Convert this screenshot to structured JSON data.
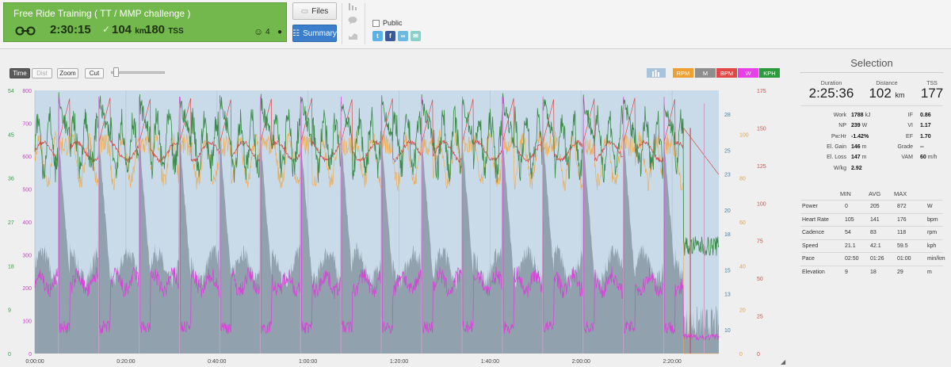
{
  "workout": {
    "title": "Free Ride Training ( TT / MMP challenge )",
    "duration": "2:30:15",
    "distance": "104",
    "distance_unit": "km",
    "tss": "180",
    "tss_unit": "TSS",
    "likes": "4",
    "card_color": "#72b84c"
  },
  "toolbar": {
    "files_label": "Files",
    "summary_label": "Summary",
    "public_label": "Public",
    "icons": [
      "bar-chart-icon",
      "comment-icon",
      "area-chart-icon"
    ],
    "share": [
      "twitter-icon",
      "facebook-icon",
      "link-icon",
      "email-icon"
    ]
  },
  "chart_tools": {
    "time_label": "Time",
    "dist_label": "Dist",
    "zoom_label": "Zoom",
    "cut_label": "Cut"
  },
  "series_buttons": [
    {
      "label": "RPM",
      "color": "#f0a030"
    },
    {
      "label": "M",
      "color": "#8e8e8e"
    },
    {
      "label": "BPM",
      "color": "#e04848"
    },
    {
      "label": "W",
      "color": "#e640e6"
    },
    {
      "label": "KPH",
      "color": "#2e9a3e"
    }
  ],
  "chart_data": {
    "type": "line",
    "x_ticks": [
      "0:00:00",
      "0:20:00",
      "0:40:00",
      "1:00:00",
      "1:20:00",
      "1:40:00",
      "2:00:00",
      "2:20:00"
    ],
    "x_range_seconds": [
      0,
      9015
    ],
    "axes": {
      "power_w": {
        "ticks": [
          "0",
          "100",
          "200",
          "300",
          "400",
          "500",
          "600",
          "700",
          "800"
        ],
        "range": [
          0,
          800
        ],
        "color": "#d23cd2"
      },
      "speed_kph": {
        "ticks": [
          "0",
          "9",
          "18",
          "27",
          "36",
          "45",
          "54"
        ],
        "range": [
          0,
          54
        ],
        "color": "#3a9a4a"
      },
      "elevation_m": {
        "ticks": [
          "10",
          "13",
          "15",
          "18",
          "20",
          "23",
          "25",
          "28"
        ],
        "range": [
          8,
          30
        ],
        "color": "#4a7a9a"
      },
      "cadence_rpm": {
        "ticks": [
          "0",
          "20",
          "40",
          "60",
          "80",
          "100"
        ],
        "range": [
          0,
          120
        ],
        "color": "#f0a030"
      },
      "heart_rate_bpm": {
        "ticks": [
          "0",
          "25",
          "50",
          "75",
          "100",
          "125",
          "150",
          "175"
        ],
        "range": [
          0,
          175
        ],
        "color": "#e04848"
      }
    },
    "intervals": {
      "count": 17,
      "first_peak_s": 310,
      "spacing_s": 532,
      "work_s": 150,
      "last_drop_s": 8550
    },
    "series": [
      {
        "name": "W",
        "avg": 205,
        "max": 872,
        "color": "#d940d9"
      },
      {
        "name": "KPH",
        "avg": 42.1,
        "max": 59.5,
        "color": "#3a8a48"
      },
      {
        "name": "RPM",
        "avg": 83,
        "max": 118,
        "color": "#f0a848"
      },
      {
        "name": "BPM",
        "avg": 141,
        "max": 176,
        "color": "#d84848"
      },
      {
        "name": "M",
        "avg": 18,
        "max": 29,
        "color": "#8e9ea8"
      }
    ]
  },
  "selection": {
    "title": "Selection",
    "duration_label": "Duration",
    "duration": "2:25:36",
    "distance_label": "Distance",
    "distance": "102",
    "distance_unit": "km",
    "tss_label": "TSS",
    "tss": "177",
    "left_stats": [
      {
        "label": "Work",
        "value": "1788",
        "unit": "kJ"
      },
      {
        "label": "NP",
        "value": "239",
        "unit": "W"
      },
      {
        "label": "Pw:Hr",
        "value": "-1.42%",
        "unit": ""
      },
      {
        "label": "El. Gain",
        "value": "146",
        "unit": "m"
      },
      {
        "label": "El. Loss",
        "value": "147",
        "unit": "m"
      },
      {
        "label": "W/kg",
        "value": "2.92",
        "unit": ""
      }
    ],
    "right_stats": [
      {
        "label": "IF",
        "value": "0.86",
        "unit": ""
      },
      {
        "label": "VI",
        "value": "1.17",
        "unit": ""
      },
      {
        "label": "EF",
        "value": "1.70",
        "unit": ""
      },
      {
        "label": "Grade",
        "value": "--",
        "unit": ""
      },
      {
        "label": "VAM",
        "value": "60",
        "unit": "m/h"
      }
    ],
    "minmax_headers": [
      "MIN",
      "AVG",
      "MAX"
    ],
    "minmax": [
      {
        "label": "Power",
        "min": "0",
        "avg": "205",
        "max": "872",
        "unit": "W"
      },
      {
        "label": "Heart Rate",
        "min": "105",
        "avg": "141",
        "max": "176",
        "unit": "bpm"
      },
      {
        "label": "Cadence",
        "min": "54",
        "avg": "83",
        "max": "118",
        "unit": "rpm"
      },
      {
        "label": "Speed",
        "min": "21.1",
        "avg": "42.1",
        "max": "59.5",
        "unit": "kph"
      },
      {
        "label": "Pace",
        "min": "02:50",
        "avg": "01:26",
        "max": "01:00",
        "unit": "min/km"
      },
      {
        "label": "Elevation",
        "min": "9",
        "avg": "18",
        "max": "29",
        "unit": "m"
      }
    ]
  }
}
